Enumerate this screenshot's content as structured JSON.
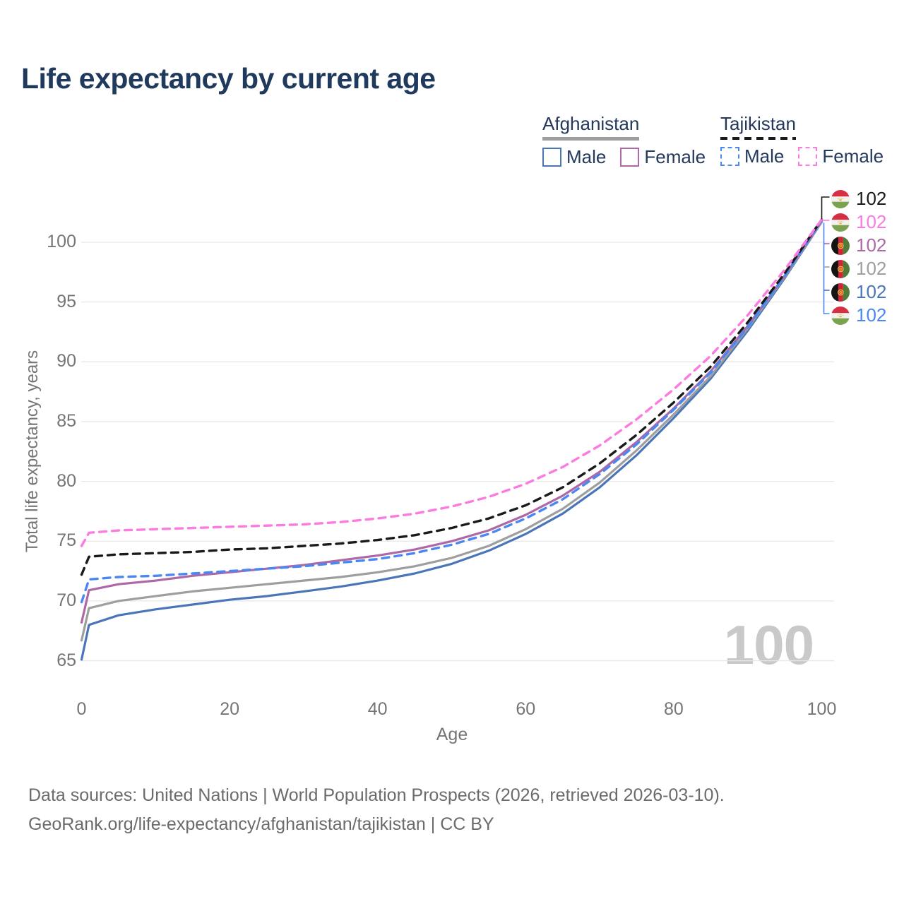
{
  "page": {
    "title": "Life expectancy by current age",
    "watermark": "100",
    "footer": {
      "line1": "Data sources: United Nations | World Population Prospects (2026, retrieved 2026-03-10).",
      "line2": "GeoRank.org/life-expectancy/afghanistan/tajikistan | CC BY"
    }
  },
  "legend": {
    "groups": [
      {
        "name": "Afghanistan",
        "underline_style": "solid",
        "underline_color": "#9e9e9e",
        "items": [
          {
            "label": "Male",
            "color": "#4a75b8",
            "dash": false
          },
          {
            "label": "Female",
            "color": "#ae68a6",
            "dash": false
          }
        ]
      },
      {
        "name": "Tajikistan",
        "underline_style": "dashed",
        "underline_color": "#1a1a1a",
        "items": [
          {
            "label": "Male",
            "color": "#4b87f2",
            "dash": true
          },
          {
            "label": "Female",
            "color": "#fb7be0",
            "dash": true
          }
        ]
      }
    ]
  },
  "chart_data": {
    "type": "line",
    "title": "Life expectancy by current age",
    "xlabel": "Age",
    "ylabel": "Total life expectancy, years",
    "xlim": [
      0,
      100
    ],
    "ylim": [
      63.5,
      103
    ],
    "xticks": [
      0,
      20,
      40,
      60,
      80,
      100
    ],
    "yticks": [
      65,
      70,
      75,
      80,
      85,
      90,
      95,
      100
    ],
    "grid": "horizontal",
    "legend_position": "top-right",
    "x": [
      0,
      1,
      5,
      10,
      15,
      20,
      25,
      30,
      35,
      40,
      45,
      50,
      55,
      60,
      65,
      70,
      75,
      80,
      85,
      90,
      95,
      100
    ],
    "series": [
      {
        "name": "Afghanistan Male",
        "country": "Afghanistan",
        "sex": "Male",
        "color": "#4a75b8",
        "dash": false,
        "values": [
          65.1,
          68.0,
          68.8,
          69.3,
          69.7,
          70.1,
          70.4,
          70.8,
          71.2,
          71.7,
          72.3,
          73.1,
          74.2,
          75.6,
          77.3,
          79.5,
          82.2,
          85.3,
          88.6,
          92.6,
          97.0,
          101.7
        ]
      },
      {
        "name": "Afghanistan Both sexes",
        "country": "Afghanistan",
        "sex": "Both",
        "color": "#9e9e9e",
        "dash": false,
        "values": [
          66.7,
          69.4,
          70.0,
          70.4,
          70.8,
          71.1,
          71.4,
          71.7,
          72.0,
          72.4,
          72.9,
          73.6,
          74.6,
          76.0,
          77.7,
          79.9,
          82.6,
          85.6,
          88.8,
          92.8,
          97.1,
          101.7
        ]
      },
      {
        "name": "Afghanistan Female",
        "country": "Afghanistan",
        "sex": "Female",
        "color": "#ae68a6",
        "dash": false,
        "values": [
          68.2,
          70.9,
          71.4,
          71.7,
          72.1,
          72.4,
          72.7,
          73.0,
          73.4,
          73.8,
          74.3,
          75.0,
          75.9,
          77.2,
          78.8,
          80.8,
          83.3,
          86.1,
          89.2,
          93.0,
          97.2,
          101.8
        ]
      },
      {
        "name": "Tajikistan Male",
        "country": "Tajikistan",
        "sex": "Male",
        "color": "#4b87f2",
        "dash": true,
        "values": [
          69.9,
          71.8,
          72.0,
          72.1,
          72.3,
          72.5,
          72.7,
          72.9,
          73.2,
          73.5,
          74.0,
          74.7,
          75.6,
          76.9,
          78.5,
          80.6,
          83.1,
          86.0,
          89.1,
          92.9,
          97.2,
          101.8
        ]
      },
      {
        "name": "Tajikistan Both sexes",
        "country": "Tajikistan",
        "sex": "Both",
        "color": "#1a1a1a",
        "dash": true,
        "values": [
          72.2,
          73.7,
          73.9,
          74.0,
          74.1,
          74.3,
          74.4,
          74.6,
          74.8,
          75.1,
          75.5,
          76.1,
          76.9,
          78.0,
          79.5,
          81.5,
          83.9,
          86.6,
          89.6,
          93.3,
          97.4,
          101.9
        ]
      },
      {
        "name": "Tajikistan Female",
        "country": "Tajikistan",
        "sex": "Female",
        "color": "#fb7be0",
        "dash": true,
        "values": [
          74.6,
          75.7,
          75.9,
          76.0,
          76.1,
          76.2,
          76.3,
          76.4,
          76.6,
          76.9,
          77.3,
          77.9,
          78.7,
          79.8,
          81.2,
          83.0,
          85.2,
          87.7,
          90.5,
          93.9,
          97.7,
          101.9
        ]
      }
    ],
    "endpoint_labels": [
      {
        "series": "Tajikistan Both sexes",
        "flag": "tj",
        "color": "#1a1a1a",
        "value": "102"
      },
      {
        "series": "Tajikistan Female",
        "flag": "tj",
        "color": "#fb7be0",
        "value": "102"
      },
      {
        "series": "Afghanistan Female",
        "flag": "af",
        "color": "#ae68a6",
        "value": "102"
      },
      {
        "series": "Afghanistan Both sexes",
        "flag": "af",
        "color": "#9e9e9e",
        "value": "102"
      },
      {
        "series": "Afghanistan Male",
        "flag": "af",
        "color": "#4a75b8",
        "value": "102"
      },
      {
        "series": "Tajikistan Male",
        "flag": "tj",
        "color": "#4b87f2",
        "value": "102"
      }
    ]
  }
}
